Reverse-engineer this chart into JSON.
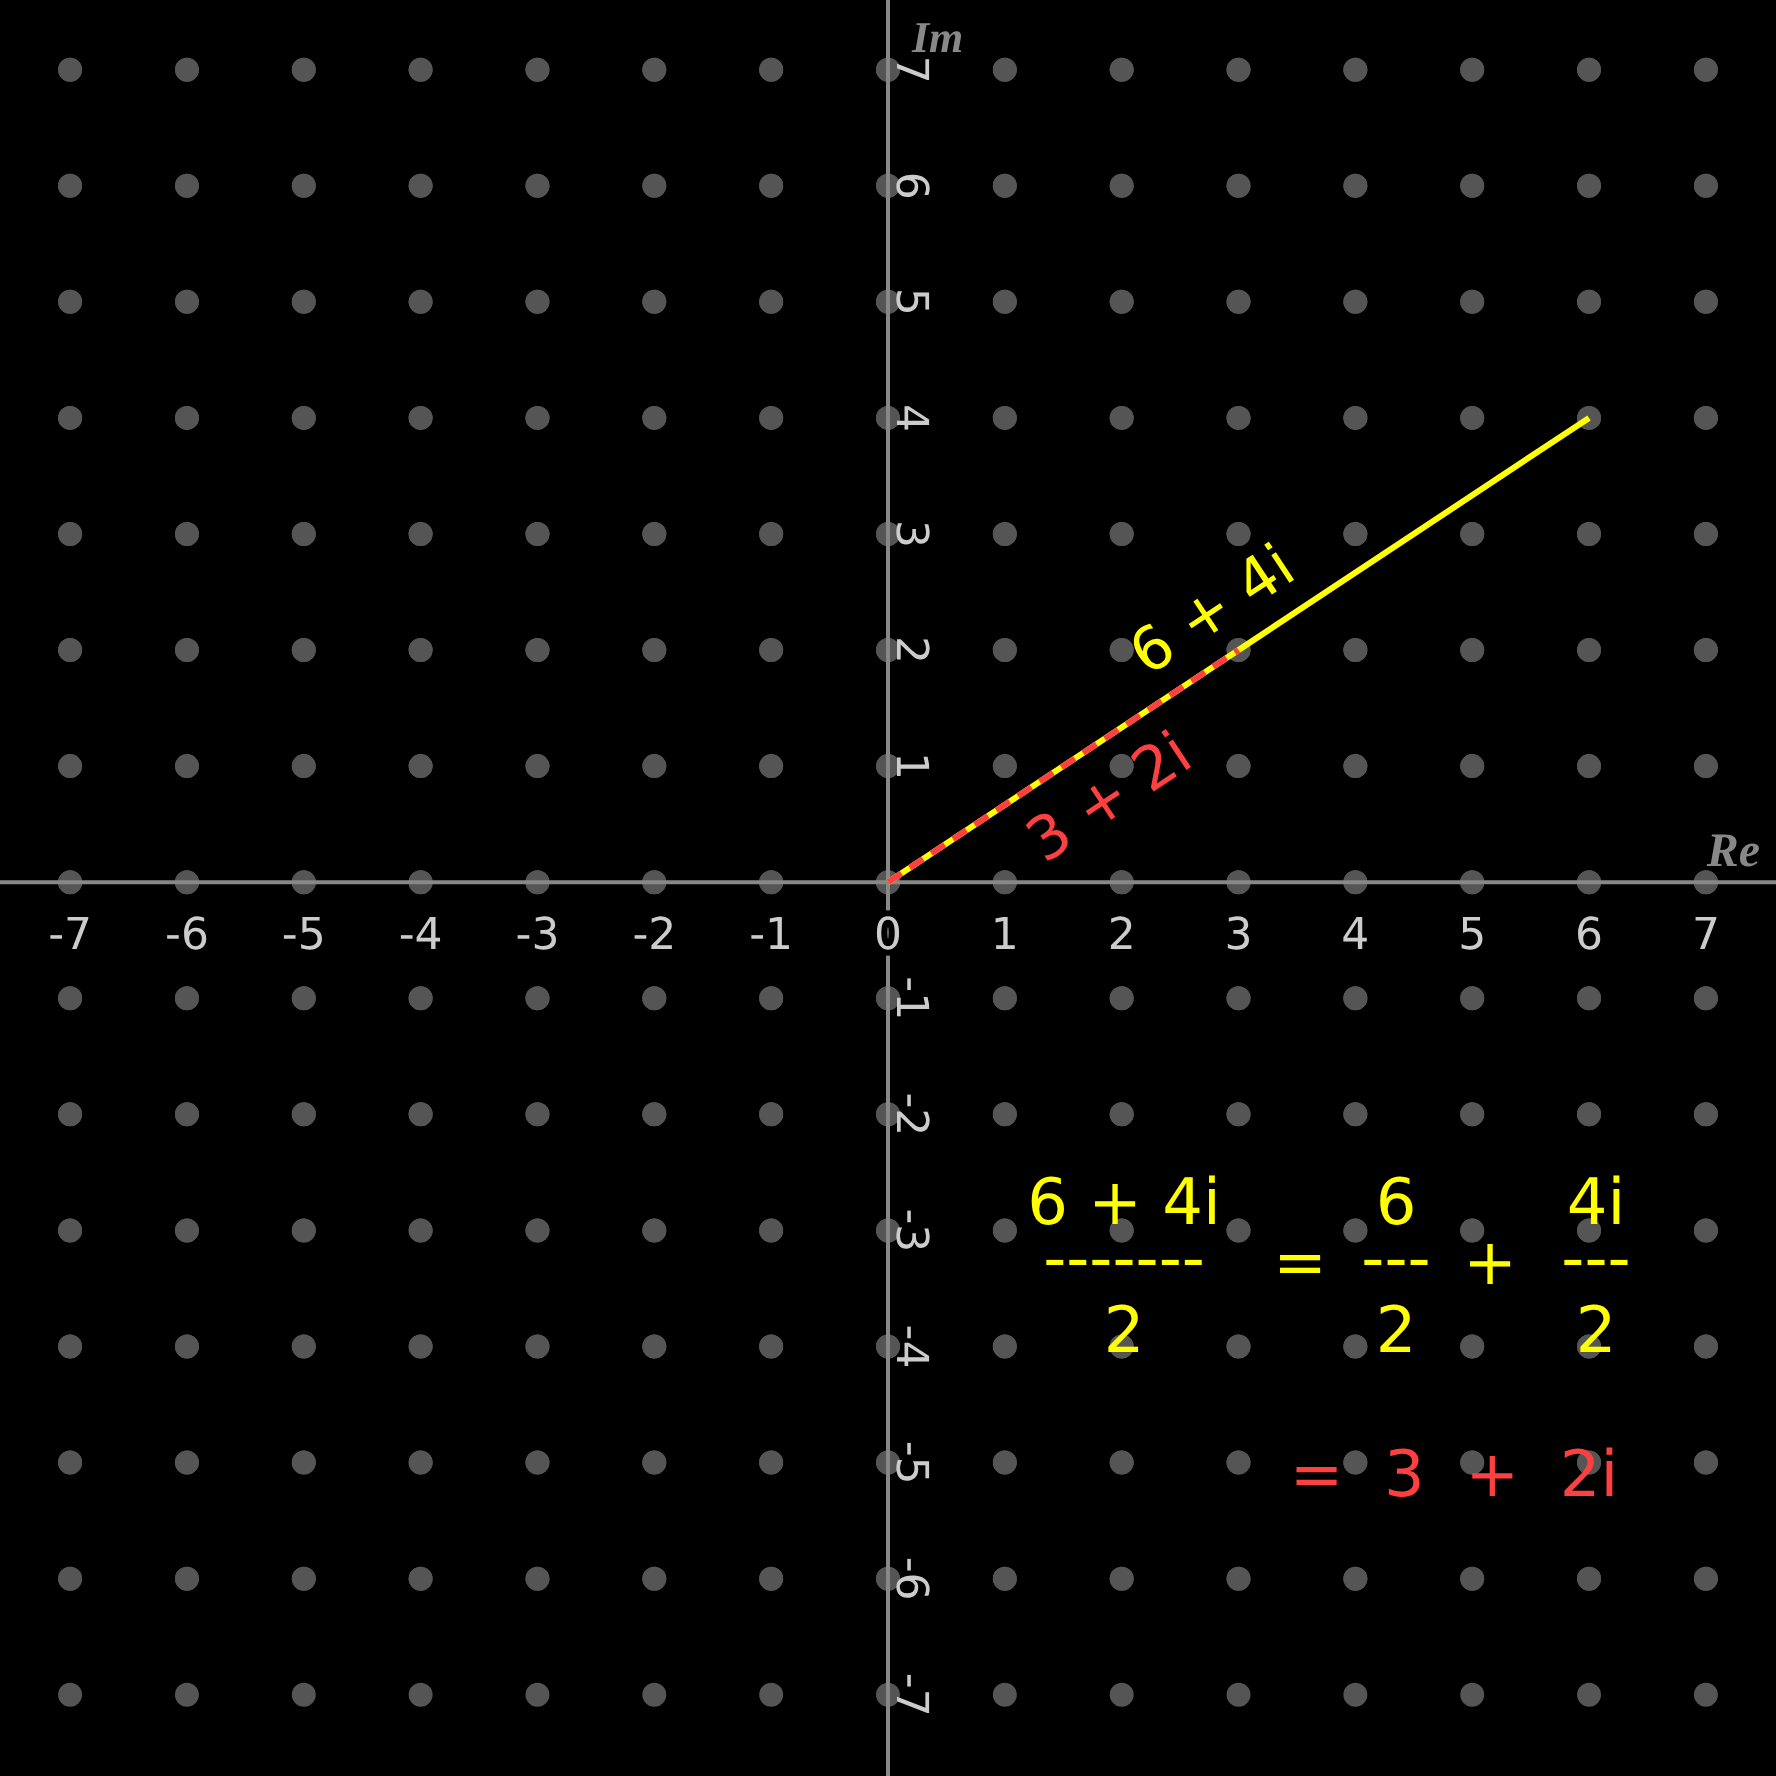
{
  "chart_data": {
    "type": "line",
    "xlabel": "Re",
    "ylabel": "Im",
    "xlim": [
      -7.6,
      7.6
    ],
    "ylim": [
      -7.7,
      7.6
    ],
    "xticks": [
      -7,
      -6,
      -5,
      -4,
      -3,
      -2,
      -1,
      0,
      1,
      2,
      3,
      4,
      5,
      6,
      7
    ],
    "yticks": [
      -7,
      -6,
      -5,
      -4,
      -3,
      -2,
      -1,
      1,
      2,
      3,
      4,
      5,
      6,
      7
    ],
    "grid": true,
    "marker": "none",
    "series": [
      {
        "name": "6 + 4i",
        "color": "#ffff00",
        "x": [
          0,
          6
        ],
        "values": [
          0,
          4
        ],
        "line_style": "solid"
      },
      {
        "name": "3 + 2i",
        "color": "#ff4040",
        "x": [
          0,
          3
        ],
        "values": [
          0,
          2
        ],
        "line_style": "dashed"
      }
    ],
    "annotations": [
      "6 + 4i",
      "-------",
      "2",
      "=",
      "6",
      "---",
      "2",
      "+",
      "4i",
      "---",
      "2",
      "=  3  +  2i"
    ]
  }
}
